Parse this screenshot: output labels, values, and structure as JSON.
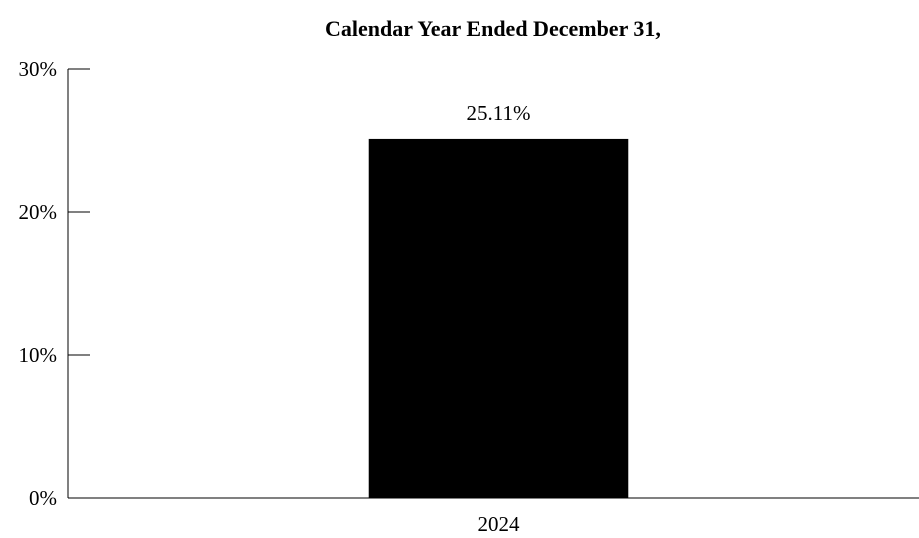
{
  "chart_data": {
    "type": "bar",
    "title": "Calendar Year Ended December 31,",
    "xlabel": "",
    "ylabel": "",
    "categories": [
      "2024"
    ],
    "values": [
      25.11
    ],
    "value_labels": [
      "25.11%"
    ],
    "ylim": [
      0,
      30
    ],
    "yticks": [
      0,
      10,
      20,
      30
    ],
    "ytick_labels": [
      "0%",
      "10%",
      "20%",
      "30%"
    ],
    "grid": false,
    "legend": "none",
    "bar_color": "#000000",
    "axis_color": "#000000"
  }
}
